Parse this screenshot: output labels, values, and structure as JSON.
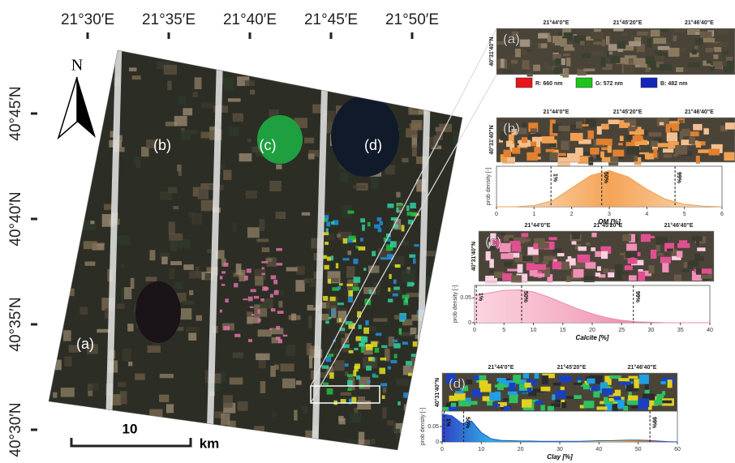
{
  "map": {
    "lon_ticks": [
      "21°30′E",
      "21°35′E",
      "21°40′E",
      "21°45′E",
      "21°50′E"
    ],
    "lat_ticks": [
      "40°45′N",
      "40°40′N",
      "40°35′N",
      "40°30′N"
    ],
    "strips": [
      "(a)",
      "(b)",
      "(c)",
      "(d)"
    ],
    "north": "N",
    "scale_value": 10,
    "scale_unit": "km"
  },
  "insets": [
    {
      "label": "(a)",
      "lon": [
        "21°44'0\"E",
        "21°45'20\"E",
        "21°46'40\"E"
      ],
      "lat": "40°31'40\"N"
    },
    {
      "label": "(b)",
      "lon": [
        "21°44'0\"E",
        "21°45'20\"E",
        "21°46'40\"E"
      ],
      "lat": "40°31'40\"N"
    },
    {
      "label": "(c)",
      "lon": [
        "21°44'0\"E",
        "21°45'20\"E",
        "21°46'40\"E"
      ],
      "lat": "40°31'40\"N"
    },
    {
      "label": "(d)",
      "lon": [
        "21°44'0\"E",
        "21°45'20\"E",
        "21°46'40\"E"
      ],
      "lat": "40°31'40\"N"
    }
  ],
  "legend": [
    {
      "label": "R: 660 nm",
      "color": "#e8141c"
    },
    {
      "label": "G: 572 nm",
      "color": "#1ec51e"
    },
    {
      "label": "B: 482 nm",
      "color": "#1626b8"
    }
  ],
  "chart_data": [
    {
      "type": "area",
      "xlabel": "OM [%]",
      "ylabel": "prob density [-]",
      "color": "#f0a050",
      "x": [
        0,
        0.5,
        1,
        1.5,
        2,
        2.5,
        3,
        3.5,
        4,
        4.5,
        5,
        5.5,
        6
      ],
      "values": [
        0,
        0,
        0.02,
        0.1,
        0.3,
        0.5,
        0.58,
        0.48,
        0.28,
        0.12,
        0.04,
        0.01,
        0
      ],
      "xlim": [
        0,
        6
      ],
      "xticks": [
        0,
        1,
        2,
        3,
        4,
        5,
        6
      ],
      "ylim": [
        0,
        0.65
      ],
      "markers": [
        {
          "x": 1.45,
          "label": "1%"
        },
        {
          "x": 2.8,
          "label": "50%"
        },
        {
          "x": 4.75,
          "label": "99%"
        }
      ]
    },
    {
      "type": "area",
      "xlabel": "Calcite [%]",
      "ylabel": "prob density [-]",
      "color": "#f08ab0",
      "x": [
        0,
        2.5,
        5,
        7.5,
        10,
        12.5,
        15,
        17.5,
        20,
        22.5,
        25,
        27.5,
        30,
        32.5,
        35,
        37.5,
        40
      ],
      "values": [
        0.055,
        0.06,
        0.065,
        0.066,
        0.062,
        0.052,
        0.04,
        0.028,
        0.018,
        0.01,
        0.005,
        0.002,
        0.001,
        0,
        0,
        0,
        0
      ],
      "xlim": [
        0,
        40
      ],
      "xticks": [
        0,
        5,
        10,
        15,
        20,
        25,
        30,
        35,
        40
      ],
      "ylim": [
        0,
        0.075
      ],
      "yticks": [
        0,
        0.05
      ],
      "markers": [
        {
          "x": 0.3,
          "label": "1%"
        },
        {
          "x": 8,
          "label": "50%"
        },
        {
          "x": 27,
          "label": "99%"
        }
      ]
    },
    {
      "type": "area",
      "xlabel": "Clay [%]",
      "ylabel": "prob density [-]",
      "color": "#2050d0",
      "x": [
        0,
        2.5,
        5,
        7.5,
        10,
        12.5,
        15,
        17.5,
        20,
        22.5,
        25,
        27.5,
        30,
        32.5,
        35,
        37.5,
        40,
        42.5,
        45,
        47.5,
        50,
        52.5,
        55,
        57.5,
        60
      ],
      "values": [
        0.09,
        0.085,
        0.06,
        0.068,
        0.03,
        0.01,
        0.005,
        0.004,
        0.003,
        0.003,
        0.002,
        0.002,
        0.002,
        0.002,
        0.002,
        0.003,
        0.004,
        0.004,
        0.005,
        0.006,
        0.006,
        0.005,
        0.003,
        0.001,
        0
      ],
      "xlim": [
        0,
        60
      ],
      "xticks": [
        0,
        10,
        20,
        30,
        40,
        50,
        60
      ],
      "ylim": [
        0,
        0.1
      ],
      "yticks": [
        0,
        0.05
      ],
      "markers": [
        {
          "x": 0.5,
          "label": "1%"
        },
        {
          "x": 5.5,
          "label": "50%"
        },
        {
          "x": 53,
          "label": "99%"
        }
      ]
    }
  ]
}
